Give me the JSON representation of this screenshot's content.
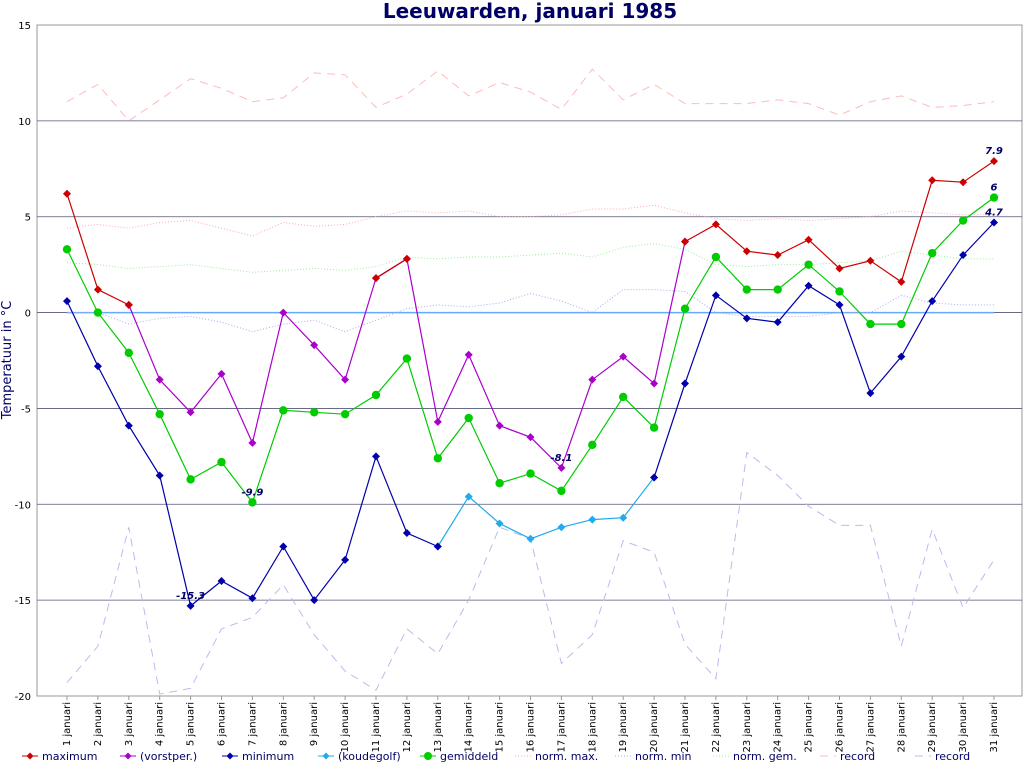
{
  "chart_data": {
    "type": "line",
    "title": "Leeuwarden, januari 1985",
    "ylabel": "Temperatuur in °C",
    "xlabel": "",
    "ylim": [
      -20,
      15
    ],
    "yticks": [
      15,
      10,
      5,
      0,
      -5,
      -10,
      -15,
      -20
    ],
    "grid": true,
    "legend_placement": "bottom",
    "categories": [
      "1 januari",
      "2 januari",
      "3 januari",
      "4 januari",
      "5 januari",
      "6 januari",
      "7 januari",
      "8 januari",
      "9 januari",
      "10 januari",
      "11 januari",
      "12 januari",
      "13 januari",
      "14 januari",
      "15 januari",
      "16 januari",
      "17 januari",
      "18 januari",
      "19 januari",
      "20 januari",
      "21 januari",
      "22 januari",
      "23 januari",
      "24 januari",
      "25 januari",
      "26 januari",
      "27 januari",
      "28 januari",
      "29 januari",
      "30 januari",
      "31 januari"
    ],
    "series": [
      {
        "name": "maximum",
        "color": "#cc0000",
        "marker": "diamond",
        "style": "solid",
        "values": [
          6.2,
          1.2,
          0.4,
          null,
          null,
          null,
          null,
          null,
          null,
          null,
          1.8,
          2.8,
          null,
          null,
          null,
          null,
          null,
          null,
          null,
          null,
          3.7,
          4.6,
          3.2,
          3.0,
          3.8,
          2.3,
          2.7,
          1.6,
          6.9,
          6.8,
          7.9
        ]
      },
      {
        "name": "(vorstper.)",
        "color": "#aa00cc",
        "marker": "diamond",
        "style": "solid",
        "values": [
          null,
          null,
          0.4,
          -3.5,
          -5.2,
          -3.2,
          -6.8,
          0.0,
          -1.7,
          -3.5,
          1.8,
          2.8,
          -5.7,
          -2.2,
          -5.9,
          -6.5,
          -8.1,
          -3.5,
          -2.3,
          -3.7,
          3.7,
          null,
          null,
          null,
          null,
          null,
          null,
          null,
          null,
          null,
          null
        ]
      },
      {
        "name": "minimum",
        "color": "#0000aa",
        "marker": "diamond",
        "style": "solid",
        "values": [
          0.6,
          -2.8,
          -5.9,
          -8.5,
          -15.3,
          -14.0,
          -14.9,
          -12.2,
          -15.0,
          -12.9,
          -7.5,
          -11.5,
          -12.2,
          null,
          null,
          null,
          null,
          null,
          null,
          -8.6,
          -3.7,
          0.9,
          -0.3,
          -0.5,
          1.4,
          0.4,
          -4.2,
          -2.3,
          0.6,
          3.0,
          4.7
        ]
      },
      {
        "name": "(koudegolf)",
        "color": "#22aaee",
        "marker": "diamond",
        "style": "solid",
        "values": [
          null,
          null,
          null,
          null,
          null,
          null,
          null,
          null,
          null,
          null,
          null,
          null,
          -12.2,
          -9.6,
          -11.0,
          -11.8,
          -11.2,
          -10.8,
          -10.7,
          -8.6,
          null,
          null,
          null,
          null,
          null,
          null,
          null,
          null,
          null,
          null,
          null
        ]
      },
      {
        "name": "gemiddeld",
        "color": "#00cc00",
        "marker": "circle",
        "style": "solid",
        "values": [
          3.3,
          0.0,
          -2.1,
          -5.3,
          -8.7,
          -7.8,
          -9.9,
          -5.1,
          -5.2,
          -5.3,
          -4.3,
          -2.4,
          -7.6,
          -5.5,
          -8.9,
          -8.4,
          -9.3,
          -6.9,
          -4.4,
          -6.0,
          0.2,
          2.9,
          1.2,
          1.2,
          2.5,
          1.1,
          -0.6,
          -0.6,
          3.1,
          4.8,
          6.0
        ]
      },
      {
        "name": "norm. max.",
        "color": "#ffaaaa",
        "marker": "none",
        "style": "dotted",
        "values": [
          4.4,
          4.6,
          4.4,
          4.7,
          4.8,
          4.4,
          4.0,
          4.7,
          4.5,
          4.6,
          5.0,
          5.3,
          5.2,
          5.3,
          5.0,
          5.0,
          5.1,
          5.4,
          5.4,
          5.6,
          5.2,
          4.9,
          4.8,
          4.9,
          4.8,
          4.9,
          5.0,
          5.3,
          5.2,
          5.1,
          5.1
        ]
      },
      {
        "name": "norm. min",
        "color": "#aaaaee",
        "marker": "none",
        "style": "dotted",
        "values": [
          0.0,
          0.0,
          -0.6,
          -0.3,
          -0.2,
          -0.5,
          -1.0,
          -0.6,
          -0.4,
          -1.0,
          -0.4,
          0.2,
          0.4,
          0.3,
          0.5,
          1.0,
          0.6,
          0.0,
          1.2,
          1.2,
          1.1,
          0.0,
          -0.2,
          -0.2,
          -0.2,
          0.0,
          0.0,
          0.9,
          0.5,
          0.4,
          0.4
        ]
      },
      {
        "name": "norm. gem.",
        "color": "#99ee99",
        "marker": "none",
        "style": "dotted",
        "values": [
          2.6,
          2.5,
          2.3,
          2.4,
          2.5,
          2.3,
          2.1,
          2.2,
          2.3,
          2.2,
          2.4,
          2.9,
          2.8,
          2.9,
          2.9,
          3.0,
          3.1,
          2.9,
          3.4,
          3.6,
          3.3,
          2.5,
          2.4,
          2.5,
          2.5,
          2.6,
          2.7,
          3.2,
          3.0,
          2.8,
          2.8
        ]
      },
      {
        "name": "record",
        "color": "#ffbbbb",
        "marker": "none",
        "style": "dashed",
        "values": [
          11.0,
          11.9,
          10.0,
          11.1,
          12.2,
          11.7,
          11.0,
          11.2,
          12.5,
          12.4,
          10.7,
          11.4,
          12.6,
          11.3,
          12.0,
          11.5,
          10.6,
          12.7,
          11.1,
          11.9,
          10.9,
          10.9,
          10.9,
          11.1,
          10.9,
          10.3,
          11.0,
          11.3,
          10.7,
          10.8,
          11.0
        ]
      },
      {
        "name": "record",
        "color": "#bbbbee",
        "marker": "none",
        "style": "dashed",
        "values": [
          -19.3,
          -17.4,
          -11.2,
          -19.9,
          -19.6,
          -16.5,
          -15.9,
          -14.2,
          -16.8,
          -18.7,
          -19.7,
          -16.5,
          -17.8,
          -15.0,
          -11.2,
          -11.8,
          -18.3,
          -16.8,
          -11.9,
          -12.5,
          -17.3,
          -19.1,
          -7.3,
          -8.5,
          -10.1,
          -11.1,
          -11.1,
          -17.4,
          -11.3,
          -15.4,
          -12.9
        ]
      }
    ],
    "zero_line": {
      "value": 0,
      "color": "#66aaff"
    },
    "annotations": [
      {
        "series": "(vorstper.)",
        "index": 16,
        "text": "-8.1"
      },
      {
        "series": "minimum",
        "index": 4,
        "text": "-15.3"
      },
      {
        "series": "gemiddeld",
        "index": 6,
        "text": "-9.9"
      },
      {
        "series": "maximum",
        "index": 30,
        "text": "7.9"
      },
      {
        "series": "gemiddeld",
        "index": 30,
        "text": "6"
      },
      {
        "series": "minimum",
        "index": 30,
        "text": "4.7"
      }
    ]
  }
}
